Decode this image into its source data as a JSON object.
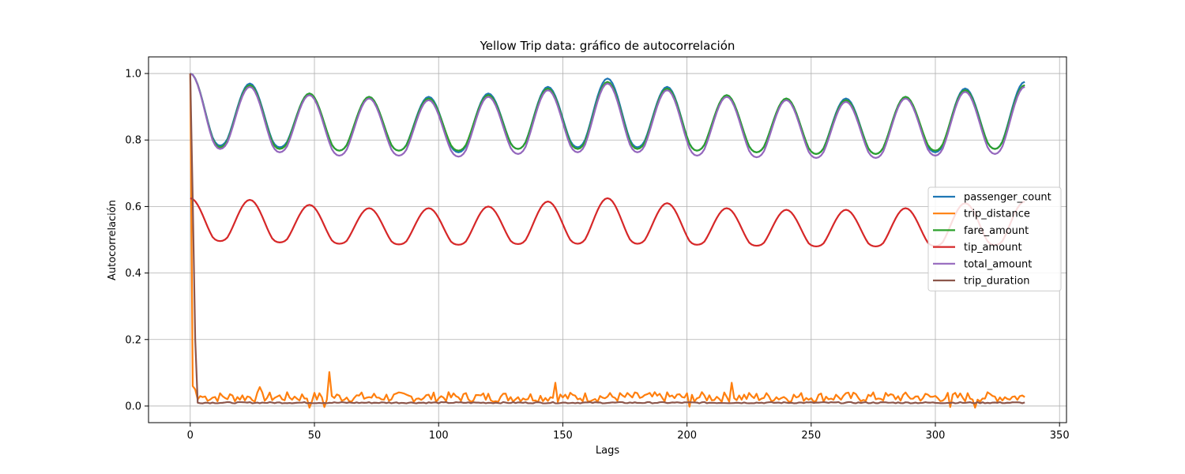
{
  "chart_data": {
    "type": "line",
    "title": "Yellow Trip data: gráfico de autocorrelación",
    "xlabel": "Lags",
    "ylabel": "Autocorrelación",
    "xlim": [
      -16.8,
      352.8
    ],
    "ylim": [
      -0.05,
      1.05
    ],
    "x_ticks": [
      0,
      50,
      100,
      150,
      200,
      250,
      300,
      350
    ],
    "y_ticks": [
      0.0,
      0.2,
      0.4,
      0.6,
      0.8,
      1.0
    ],
    "x_tick_labels": [
      "0",
      "50",
      "100",
      "150",
      "200",
      "250",
      "300",
      "350"
    ],
    "y_tick_labels": [
      "0.0",
      "0.2",
      "0.4",
      "0.6",
      "0.8",
      "1.0"
    ],
    "grid": true,
    "legend_position": "center-right",
    "lags": {
      "start": 0,
      "end": 336,
      "step": 1
    },
    "series": [
      {
        "name": "passenger_count",
        "color": "#1f77b4",
        "lag0": 1.0,
        "cycle_lag": 24,
        "peaks": [
          1.0,
          0.97,
          0.94,
          0.93,
          0.93,
          0.94,
          0.96,
          0.985,
          0.96,
          0.935,
          0.925,
          0.925,
          0.93,
          0.955,
          0.975
        ],
        "troughs": [
          0.775,
          0.77,
          0.76,
          0.76,
          0.755,
          0.765,
          0.77,
          0.77,
          0.76,
          0.755,
          0.75,
          0.75,
          0.755,
          0.765
        ]
      },
      {
        "name": "trip_distance",
        "color": "#ff7f0e",
        "head": [
          1.0,
          0.06,
          0.05,
          0.02,
          0.03
        ],
        "baseline": 0.027,
        "spikes": [
          [
            28,
            0.057
          ],
          [
            56,
            0.102
          ],
          [
            54,
            -0.003
          ],
          [
            48,
            -0.005
          ],
          [
            147,
            0.07
          ],
          [
            218,
            0.07
          ],
          [
            201,
            -0.002
          ],
          [
            306,
            -0.003
          ],
          [
            316,
            -0.005
          ]
        ]
      },
      {
        "name": "fare_amount",
        "color": "#2ca02c",
        "lag0": 1.0,
        "cycle_lag": 24,
        "peaks": [
          1.0,
          0.965,
          0.94,
          0.93,
          0.925,
          0.935,
          0.955,
          0.975,
          0.955,
          0.935,
          0.925,
          0.92,
          0.93,
          0.95,
          0.965
        ],
        "troughs": [
          0.77,
          0.765,
          0.76,
          0.76,
          0.76,
          0.765,
          0.765,
          0.765,
          0.76,
          0.755,
          0.75,
          0.75,
          0.76,
          0.765
        ]
      },
      {
        "name": "tip_amount",
        "color": "#d62728",
        "lag0": 1.0,
        "cycle_lag": 24,
        "peaks": [
          0.625,
          0.62,
          0.605,
          0.595,
          0.595,
          0.6,
          0.615,
          0.625,
          0.61,
          0.595,
          0.59,
          0.59,
          0.595,
          0.61,
          0.615
        ],
        "troughs": [
          0.488,
          0.484,
          0.48,
          0.478,
          0.477,
          0.479,
          0.48,
          0.48,
          0.477,
          0.474,
          0.472,
          0.472,
          0.473,
          0.476
        ]
      },
      {
        "name": "total_amount",
        "color": "#9467bd",
        "lag0": 1.0,
        "cycle_lag": 24,
        "peaks": [
          1.0,
          0.96,
          0.935,
          0.925,
          0.92,
          0.93,
          0.95,
          0.97,
          0.95,
          0.93,
          0.92,
          0.915,
          0.925,
          0.945,
          0.96
        ],
        "troughs": [
          0.765,
          0.755,
          0.745,
          0.745,
          0.742,
          0.75,
          0.755,
          0.755,
          0.745,
          0.74,
          0.738,
          0.738,
          0.745,
          0.75
        ]
      },
      {
        "name": "trip_duration",
        "color": "#8c564b",
        "head": [
          1.0,
          0.62,
          0.2,
          0.01
        ],
        "baseline": 0.01
      }
    ]
  }
}
